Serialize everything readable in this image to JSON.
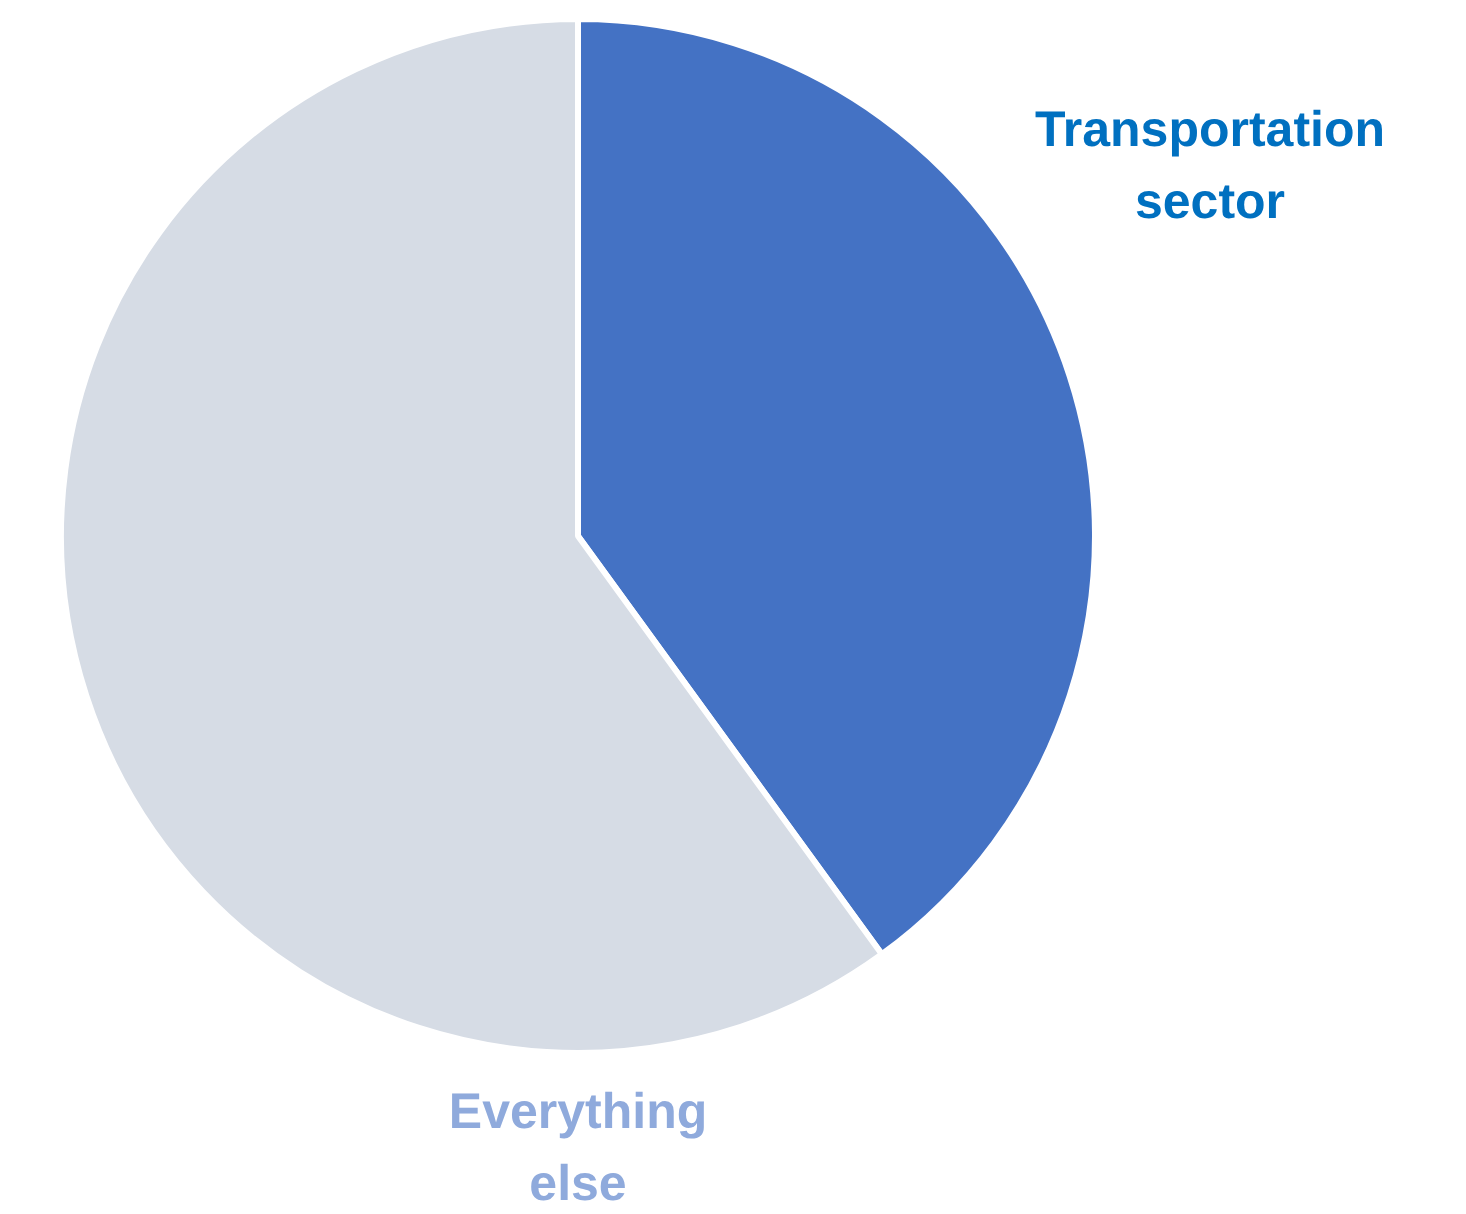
{
  "chart_data": {
    "type": "pie",
    "categories": [
      "Transportation sector",
      "Everything else"
    ],
    "values": [
      40,
      60
    ],
    "colors": [
      "#4472c4",
      "#d6dce5"
    ],
    "legend": false
  }
}
